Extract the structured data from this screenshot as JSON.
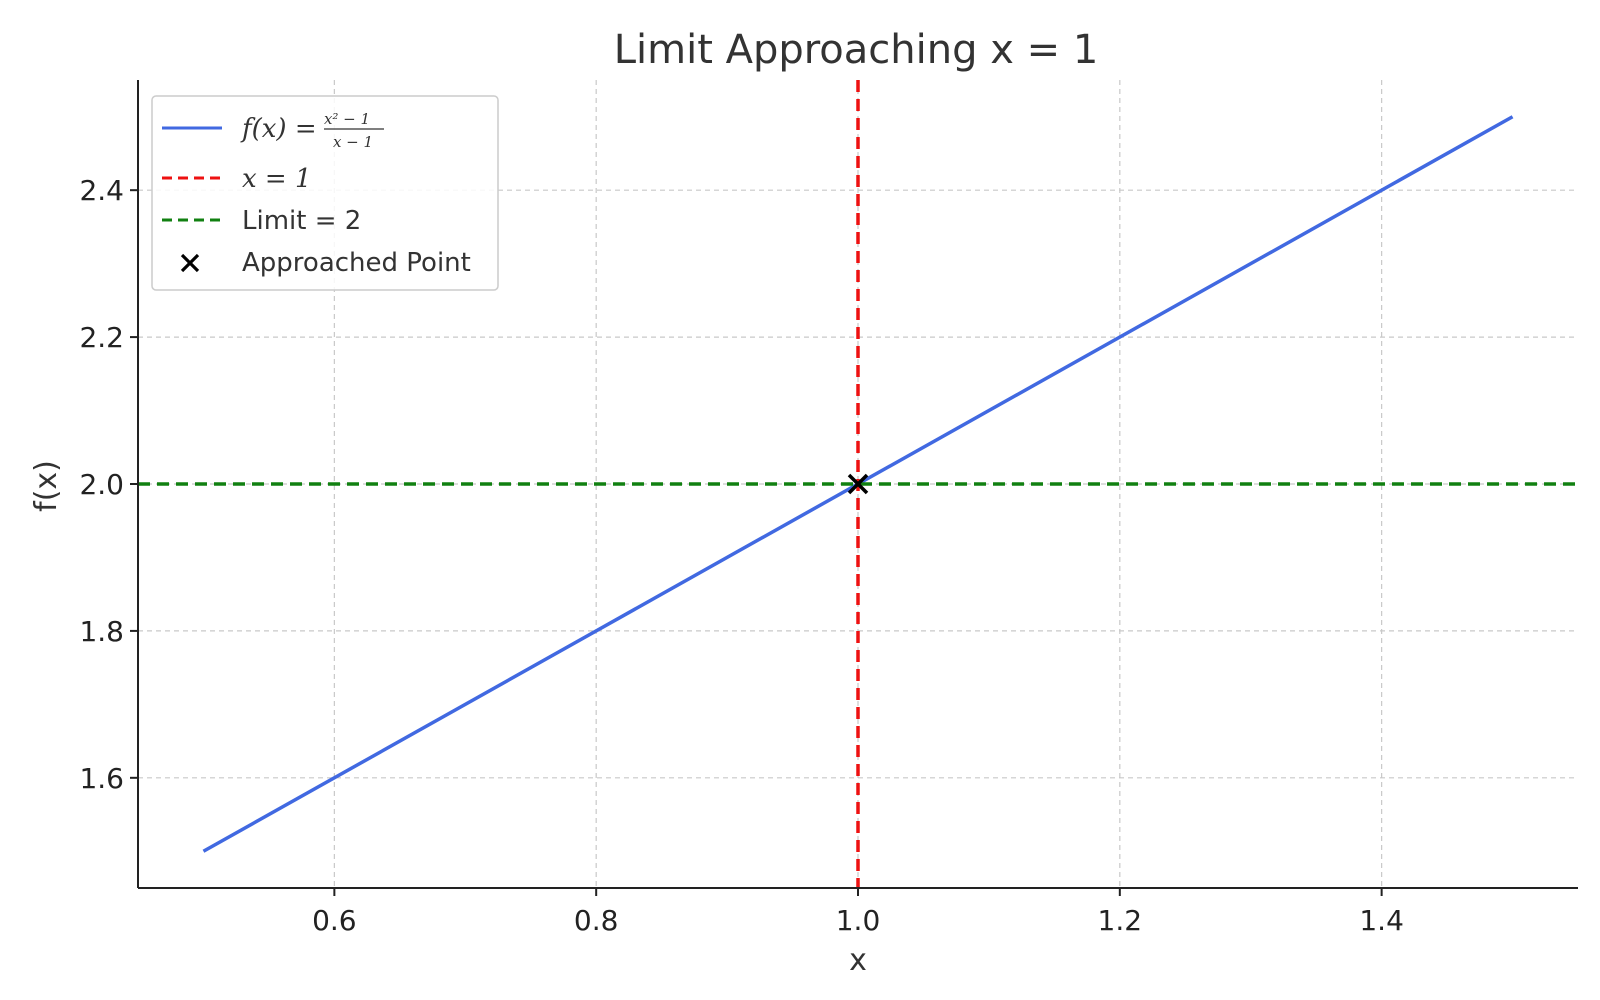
{
  "chart_data": {
    "type": "line",
    "title": "Limit Approaching x = 1",
    "xlabel": "x",
    "ylabel": "f(x)",
    "xlim": [
      0.45,
      1.55
    ],
    "ylim": [
      1.45,
      2.55
    ],
    "xticks": [
      0.6,
      0.8,
      1.0,
      1.2,
      1.4
    ],
    "xtick_labels": [
      "0.6",
      "0.8",
      "1.0",
      "1.2",
      "1.4"
    ],
    "yticks": [
      1.6,
      1.8,
      2.0,
      2.2,
      2.4
    ],
    "ytick_labels": [
      "1.6",
      "1.8",
      "2.0",
      "2.2",
      "2.4"
    ],
    "grid": true,
    "legend_position": "top-left",
    "series": [
      {
        "kind": "line",
        "legend": {
          "prefix": "f(x) =",
          "numerator": "x² − 1",
          "denominator": "x − 1"
        },
        "color": "#4169e1",
        "x": [
          0.5,
          1.5
        ],
        "y": [
          1.5,
          2.5
        ]
      },
      {
        "kind": "vline",
        "legend": "x = 1",
        "color": "#ee1111",
        "x": 1.0
      },
      {
        "kind": "hline",
        "legend": "Limit  = 2",
        "color": "#118011",
        "y": 2.0
      },
      {
        "kind": "point",
        "legend": "Approached Point",
        "color": "#000000",
        "x": 1.0,
        "y": 2.0
      }
    ]
  }
}
